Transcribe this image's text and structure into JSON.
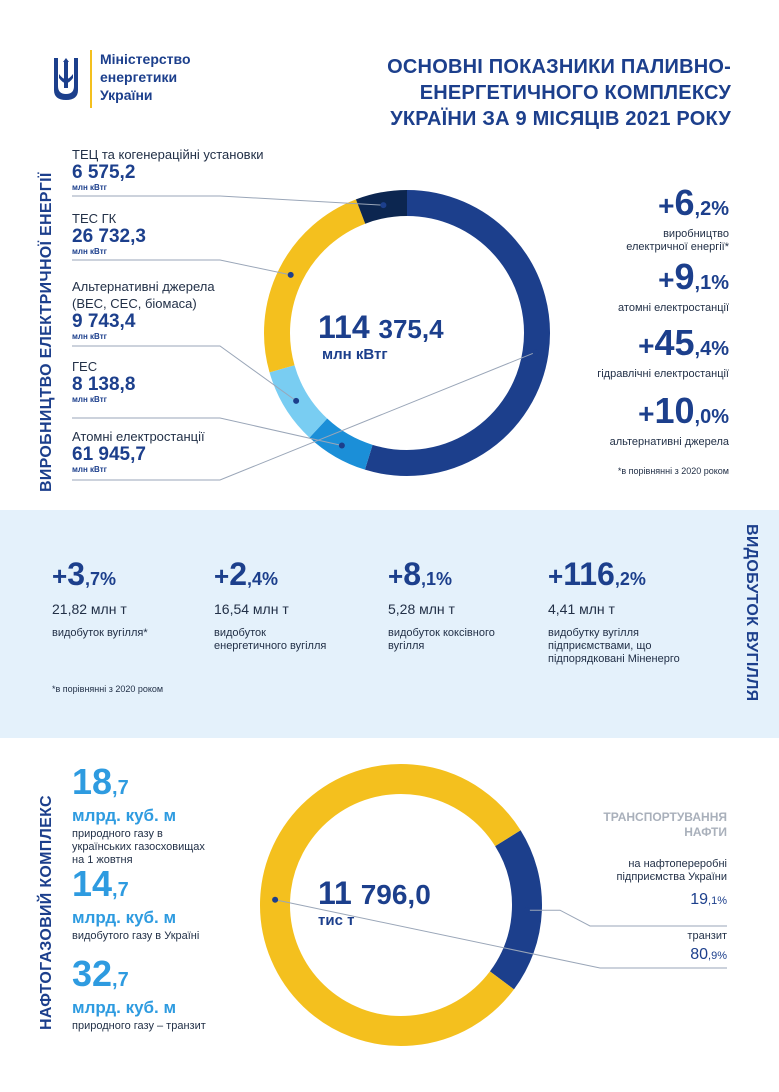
{
  "header": {
    "ministry_line1": "Міністерство",
    "ministry_line2": "енергетики",
    "ministry_line3": "України",
    "title_line1": "ОСНОВНІ ПОКАЗНИКИ ПАЛИВНО-",
    "title_line2": "ЕНЕРГЕТИЧНОГО КОМПЛЕКСУ",
    "title_line3": "УКРАЇНИ ЗА 9 МІСЯЦІВ 2021 РОКУ"
  },
  "electricity": {
    "vertical_label": "ВИРОБНИЦТВО ЕЛЕКТРИЧНОЇ ЕНЕРГІЇ",
    "sources": [
      {
        "name": "ТЕЦ та когенераційні установки",
        "value": "6 575,2",
        "unit": "млн кВтг"
      },
      {
        "name": "ТЕС ГК",
        "value": "26 732,3",
        "unit": "млн кВтг"
      },
      {
        "name": "Альтернативні джерела",
        "name2": "(ВЕС, СЕС, біомаса)",
        "value": "9 743,4",
        "unit": "млн кВтг"
      },
      {
        "name": "ГЕС",
        "value": "8 138,8",
        "unit": "млн кВтг"
      },
      {
        "name": "Атомні електростанції",
        "value": "61 945,7",
        "unit": "млн кВтг"
      }
    ],
    "total_int": "114",
    "total_frac": "375,4",
    "total_unit": "млн кВтг",
    "growth": [
      {
        "plus": "+",
        "int": "6",
        "frac": ",2%",
        "label1": "виробництво",
        "label2": "електричної енергії*"
      },
      {
        "plus": "+",
        "int": "9",
        "frac": ",1%",
        "label1": "атомні електростанції",
        "label2": ""
      },
      {
        "plus": "+",
        "int": "45",
        "frac": ",4%",
        "label1": "гідравлічні електростанції",
        "label2": ""
      },
      {
        "plus": "+",
        "int": "10",
        "frac": ",0%",
        "label1": "альтернативні джерела",
        "label2": ""
      }
    ],
    "note": "*в порівнянні з 2020 роком",
    "colors": {
      "nuclear": "#1c3f8c",
      "hydro": "#1b8fd8",
      "alternative": "#79cdf2",
      "tes": "#f4c01e",
      "tec": "#0c2650"
    }
  },
  "chart_data": [
    {
      "type": "pie",
      "title": "",
      "categories": [
        "Атомні електростанції",
        "ГЕС",
        "Альтернативні джерела",
        "ТЕС ГК",
        "ТЕЦ та когенераційні установки"
      ],
      "values": [
        61945.7,
        8138.8,
        9743.4,
        26732.3,
        6575.2
      ],
      "unit": "млн кВтг",
      "total": 114375.4
    },
    {
      "type": "pie",
      "title": "ТРАНСПОРТУВАННЯ НАФТИ",
      "categories": [
        "на нафтопереробні підприємства України",
        "транзит"
      ],
      "values": [
        19.1,
        80.9
      ],
      "unit": "%",
      "total": "11 796,0 тис т"
    }
  ],
  "coal": {
    "vertical_label": "ВИДОБУТОК ВУГІЛЛЯ",
    "items": [
      {
        "plus": "+",
        "int": "3",
        "frac": ",7%",
        "value": "21,82 млн т",
        "label1": "видобуток вугілля*",
        "label2": "",
        "label3": ""
      },
      {
        "plus": "+",
        "int": "2",
        "frac": ",4%",
        "value": "16,54 млн т",
        "label1": "видобуток",
        "label2": "енергетичного вугілля",
        "label3": ""
      },
      {
        "plus": "+",
        "int": "8",
        "frac": ",1%",
        "value": "5,28 млн т",
        "label1": "видобуток коксівного",
        "label2": "вугілля",
        "label3": ""
      },
      {
        "plus": "+",
        "int": "116",
        "frac": ",2%",
        "value": "4,41 млн т",
        "label1": "видобутку вугілля",
        "label2": "підприємствами, що",
        "label3": "підпорядковані Міненерго"
      }
    ],
    "note": "*в порівнянні з 2020 роком"
  },
  "oilgas": {
    "vertical_label": "НАФТОГАЗОВИЙ КОМПЛЕКС",
    "gas": [
      {
        "int": "18",
        "frac": ",7",
        "unit": "млрд. куб. м",
        "label1": "природного газу в",
        "label2": "українських газосховищах",
        "label3": "на 1 жовтня"
      },
      {
        "int": "14",
        "frac": ",7",
        "unit": "млрд. куб. м",
        "label1": "видобутого газу в Україні",
        "label2": "",
        "label3": ""
      },
      {
        "int": "32",
        "frac": ",7",
        "unit": "млрд. куб. м",
        "label1": "природного газу – транзит",
        "label2": "",
        "label3": ""
      }
    ],
    "total_int": "11",
    "total_frac": "796,0",
    "total_unit": "тис т",
    "oil_title1": "ТРАНСПОРТУВАННЯ",
    "oil_title2": "НАФТИ",
    "refinery_label1": "на нафтопереробні",
    "refinery_label2": "підприємства України",
    "refinery_int": "19",
    "refinery_frac": ",1%",
    "transit_label": "транзит",
    "transit_int": "80",
    "transit_frac": ",9%",
    "colors": {
      "refinery": "#1c3f8c",
      "transit": "#f4c01e"
    }
  }
}
